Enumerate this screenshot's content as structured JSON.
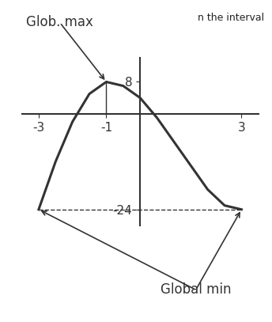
{
  "chart_data": {
    "type": "line",
    "x": [
      -3,
      -2.5,
      -2,
      -1.5,
      -1,
      -0.5,
      0,
      0.5,
      1,
      1.5,
      2,
      2.5,
      3
    ],
    "values": [
      -24,
      -12,
      -2,
      5,
      8,
      7,
      4,
      -1,
      -7,
      -13,
      -19,
      -23,
      -24
    ],
    "color": "#333333",
    "xlim": [
      -3.5,
      3.5
    ],
    "ylim": [
      -28,
      14
    ],
    "xticks": [
      -3,
      -1,
      3
    ],
    "yticks": [
      8,
      -24
    ],
    "grid": false,
    "annotations": [
      {
        "text": "Glob. max",
        "points": [
          [
            -1,
            8
          ]
        ]
      },
      {
        "text": "Global min",
        "points": [
          [
            -3,
            -24
          ],
          [
            3,
            -24
          ]
        ]
      },
      {
        "text": "n the interval",
        "points": []
      }
    ]
  }
}
